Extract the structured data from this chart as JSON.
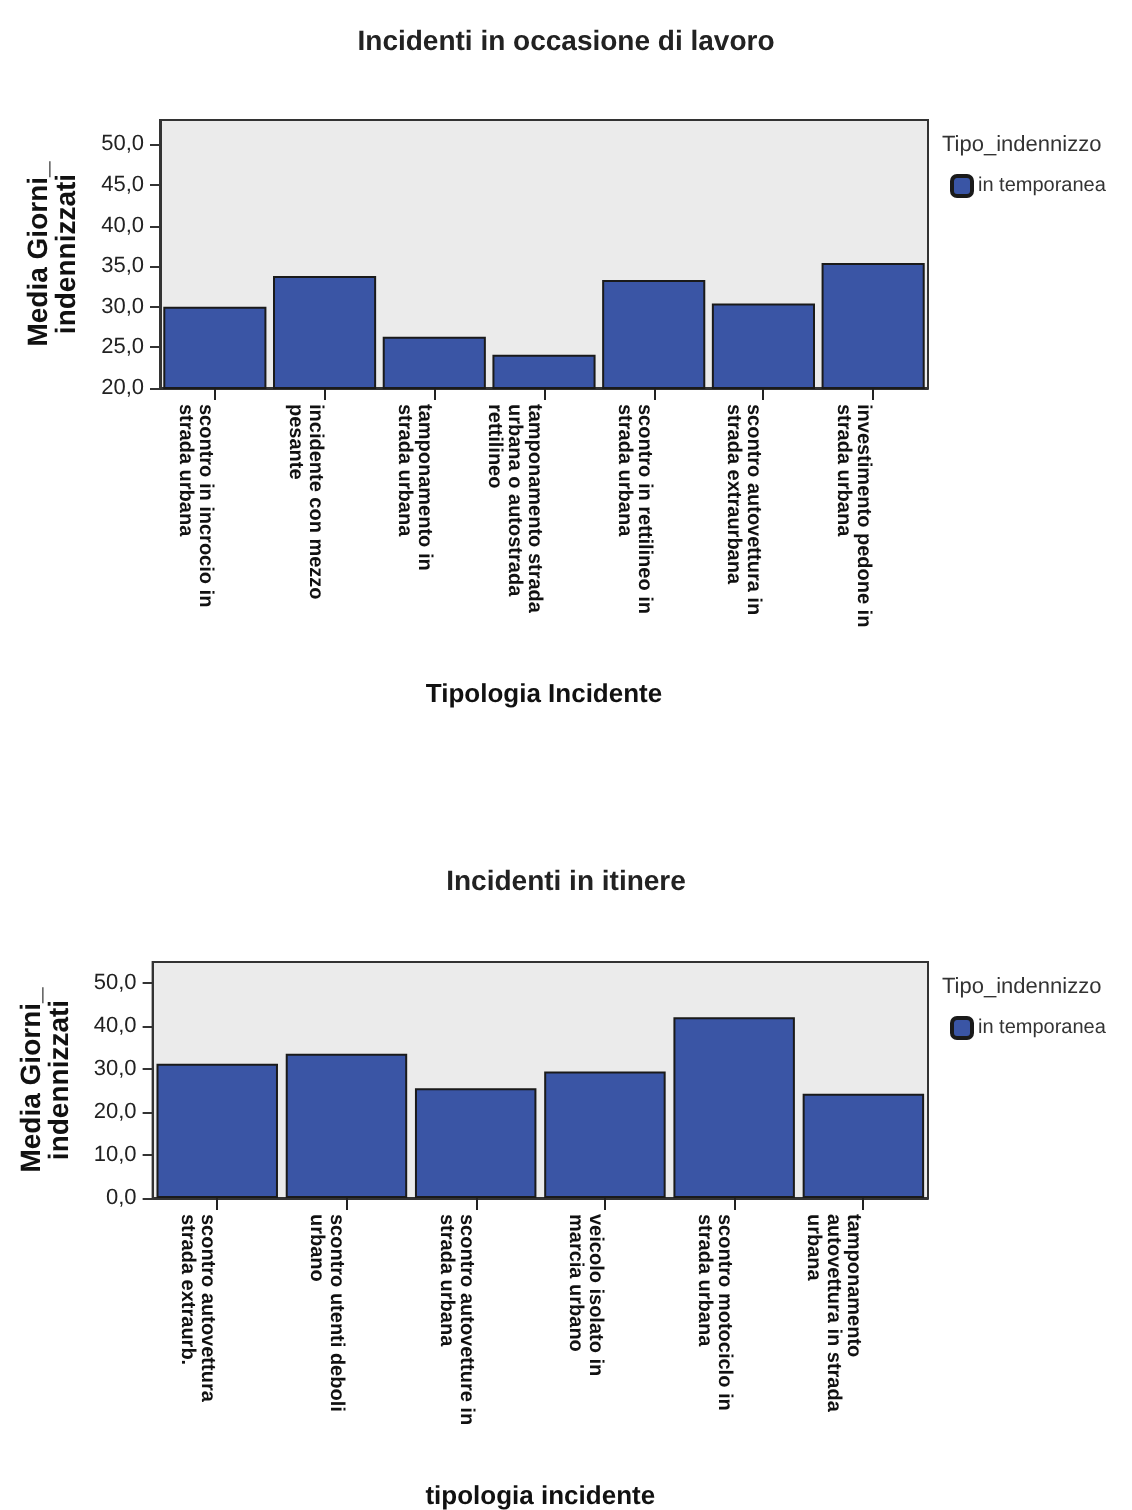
{
  "chart_data": [
    {
      "type": "bar",
      "title": "Incidenti in occasione di lavoro",
      "xlabel": "Tipologia Incidente",
      "ylabel": "Media Giorni_ indennizzati",
      "legend_title": "Tipo_indennizzo",
      "legend": "top right",
      "grid": false,
      "categories": [
        "scontro in incrocio in strada urbana",
        "incidente con mezzo pesante",
        "tamponamento in strada urbana",
        "tamponamento strada urbana o autostrada rettilineo",
        "scontro in rettilineo in strada urbana",
        "scontro autovettura in strada extraurbana",
        "investimento pedone in strada urbana"
      ],
      "series": [
        {
          "name": "in temporanea",
          "color": "#3a55a5",
          "values": [
            30.0,
            33.8,
            26.3,
            24.1,
            33.3,
            30.4,
            35.4
          ]
        }
      ],
      "ylim": [
        20,
        53
      ],
      "yticks": [
        {
          "value": 20,
          "label": "20,0"
        },
        {
          "value": 25,
          "label": "25,0"
        },
        {
          "value": 30,
          "label": "30,0"
        },
        {
          "value": 35,
          "label": "35,0"
        },
        {
          "value": 40,
          "label": "40,0"
        },
        {
          "value": 45,
          "label": "45,0"
        },
        {
          "value": 50,
          "label": "50,0"
        }
      ]
    },
    {
      "type": "bar",
      "title": "Incidenti in itinere",
      "xlabel": "tipologia incidente",
      "ylabel": "Media Giorni_ indennizzati",
      "legend_title": "Tipo_indennizzo",
      "legend": "top right",
      "grid": false,
      "categories": [
        "scontro autovettura strada extraurb.",
        "scontro utenti deboli urbano",
        "scontro autovetture in strada urbana",
        "veicolo isolato in marcia urbano",
        "scontro motociclo in strada urbana",
        "tamponamento autovettura in strada urbana"
      ],
      "series": [
        {
          "name": "in temporanea",
          "color": "#3a55a5",
          "values": [
            31.3,
            33.6,
            25.6,
            29.5,
            42.1,
            24.3
          ]
        }
      ],
      "ylim": [
        0,
        55
      ],
      "yticks": [
        {
          "value": 0,
          "label": "0,0"
        },
        {
          "value": 10,
          "label": "10,0"
        },
        {
          "value": 20,
          "label": "20,0"
        },
        {
          "value": 30,
          "label": "30,0"
        },
        {
          "value": 40,
          "label": "40,0"
        },
        {
          "value": 50,
          "label": "50,0"
        }
      ]
    }
  ]
}
